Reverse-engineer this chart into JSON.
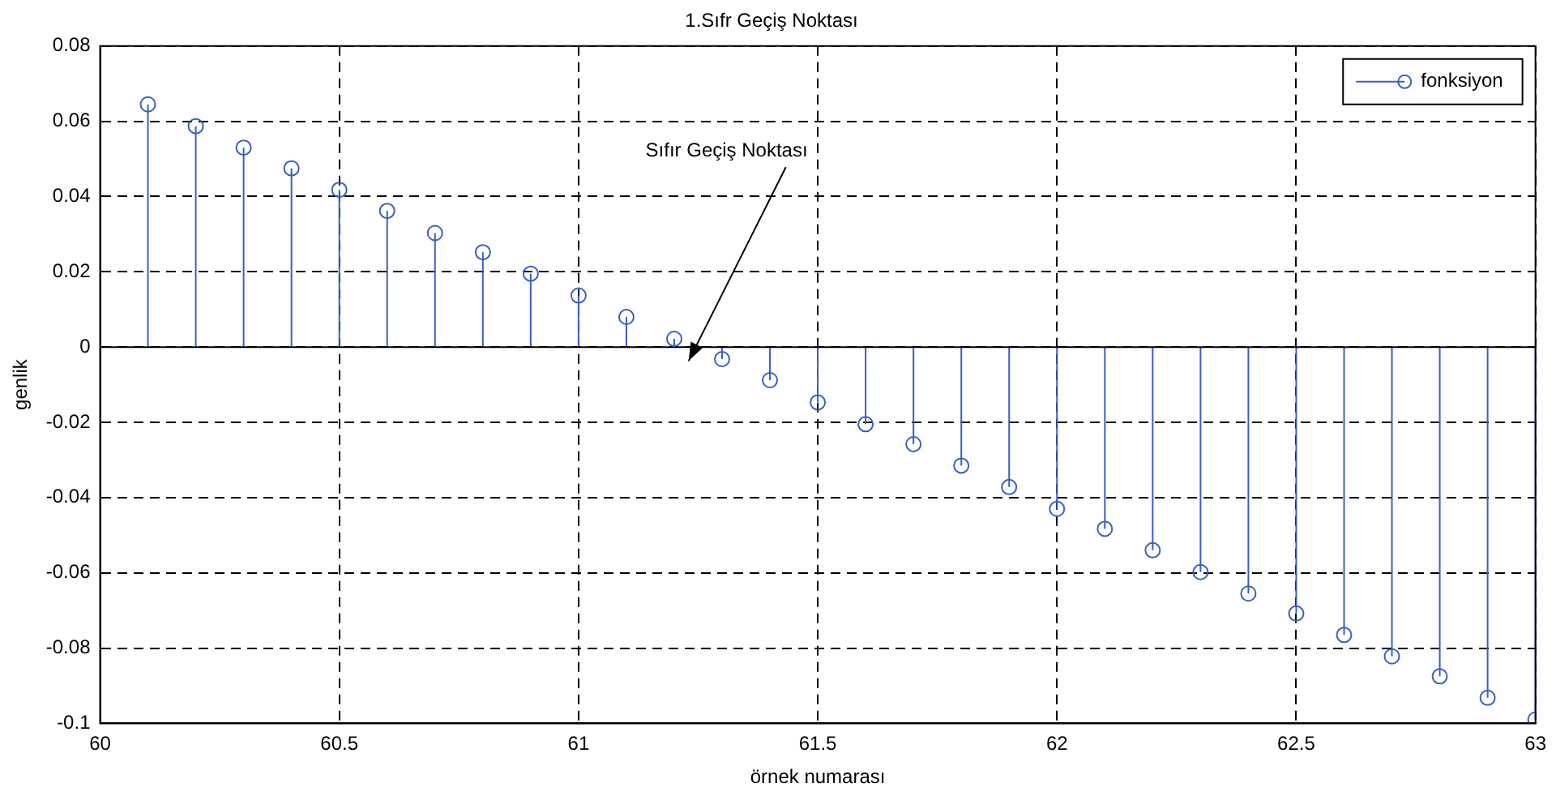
{
  "chart_data": {
    "type": "lollipop",
    "title": "1.Sıfr Geçiş Noktası",
    "xlabel": "örnek numarası",
    "ylabel": "genlik",
    "x": [
      60.1,
      60.2,
      60.3,
      60.4,
      60.5,
      60.6,
      60.7,
      60.8,
      60.9,
      61.0,
      61.1,
      61.2,
      61.3,
      61.4,
      61.5,
      61.6,
      61.7,
      61.8,
      61.9,
      62.0,
      62.1,
      62.2,
      62.3,
      62.4,
      62.5,
      62.6,
      62.7,
      62.8,
      62.9,
      63.0
    ],
    "series": [
      {
        "name": "fonksiyon",
        "color": "#3a5fc4",
        "values": [
          0.0645,
          0.0587,
          0.053,
          0.0475,
          0.0418,
          0.0362,
          0.0303,
          0.0252,
          0.0195,
          0.0137,
          0.008,
          0.0022,
          -0.0032,
          -0.0088,
          -0.0147,
          -0.0205,
          -0.0258,
          -0.0315,
          -0.0372,
          -0.043,
          -0.0483,
          -0.054,
          -0.0598,
          -0.0655,
          -0.0708,
          -0.0765,
          -0.0822,
          -0.0875,
          -0.0932,
          -0.099
        ]
      }
    ],
    "xlim": [
      60,
      63
    ],
    "xticks": [
      60,
      60.5,
      61,
      61.5,
      62,
      62.5,
      63
    ],
    "ylim": [
      -0.1,
      0.08
    ],
    "yticks": [
      -0.1,
      -0.08,
      -0.06,
      -0.04,
      -0.02,
      0,
      0.02,
      0.04,
      0.06,
      0.08
    ],
    "annotations": [
      "Sıfır Geçiş Noktası"
    ],
    "grid": true,
    "legend": "top right",
    "marker": "circle"
  }
}
